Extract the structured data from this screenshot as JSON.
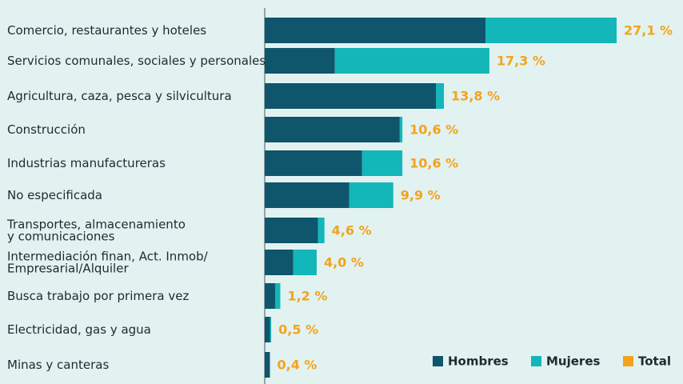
{
  "chart_data": {
    "type": "stacked-bar-horizontal",
    "categories": [
      [
        "Comercio, restaurantes y hoteles"
      ],
      [
        "Servicios comunales, sociales y personales"
      ],
      [
        "Agricultura, caza, pesca y silvicultura"
      ],
      [
        "Construcción"
      ],
      [
        "Industrias manufactureras"
      ],
      [
        "No especificada"
      ],
      [
        "Transportes, almacenamiento",
        "y comunicaciones"
      ],
      [
        "Intermediación finan, Act. Inmob/",
        "Empresarial/Alquiler"
      ],
      [
        "Busca trabajo por primera vez"
      ],
      [
        "Electricidad, gas y agua"
      ],
      [
        "Minas y canteras"
      ]
    ],
    "series": [
      {
        "name": "Hombres",
        "color": "#0f556b",
        "values": [
          17.0,
          5.4,
          13.2,
          10.4,
          7.5,
          6.5,
          4.1,
          2.2,
          0.8,
          0.4,
          0.4
        ]
      },
      {
        "name": "Mujeres",
        "color": "#13b6b9",
        "values": [
          10.1,
          11.9,
          0.6,
          0.2,
          3.1,
          3.4,
          0.5,
          1.8,
          0.4,
          0.1,
          0.0
        ]
      },
      {
        "name": "Total",
        "color": "#f3a31c",
        "values": [
          27.1,
          17.3,
          13.8,
          10.6,
          10.6,
          9.9,
          4.6,
          4.0,
          1.2,
          0.5,
          0.4
        ],
        "value_labels": [
          "27,1 %",
          "17,3 %",
          "13,8 %",
          "10,6 %",
          "10,6 %",
          "9,9 %",
          "4,6 %",
          "4,0 %",
          "1,2 %",
          "0,5 %",
          "0,4 %"
        ]
      }
    ]
  }
}
